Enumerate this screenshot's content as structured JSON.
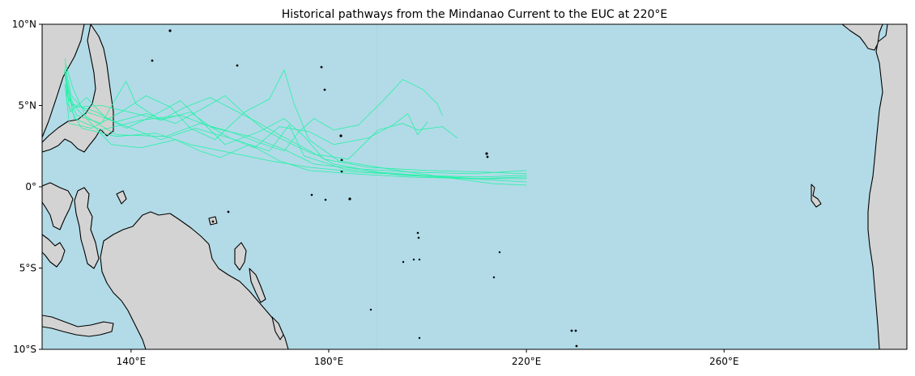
{
  "title": "Historical pathways from the Mindanao Current to the EUC at 220°E",
  "colors": {
    "ocean": "#b2dbe7",
    "land": "#d3d3d3",
    "coastline": "#000000",
    "trajectory": "#1ff2a4",
    "dateline": "#a9d3de"
  },
  "map": {
    "projection": "PlateCarree",
    "lon_range": [
      122,
      297
    ],
    "lat_range": [
      -10,
      10
    ],
    "lon_ticks": [
      {
        "value": 140,
        "label": "140°E"
      },
      {
        "value": 180,
        "label": "180°E"
      },
      {
        "value": 220,
        "label": "220°E"
      },
      {
        "value": 260,
        "label": "260°E"
      }
    ],
    "lat_ticks": [
      {
        "value": 10,
        "label": "10°N"
      },
      {
        "value": 5,
        "label": "5°N"
      },
      {
        "value": 0,
        "label": "0°"
      },
      {
        "value": -5,
        "label": "5°S"
      },
      {
        "value": -10,
        "label": "10°S"
      }
    ],
    "features": [
      "coastlines",
      "land",
      "ocean"
    ]
  },
  "trajectories": [
    {
      "name": "path-1",
      "points": [
        [
          126.7,
          7.9
        ],
        [
          127,
          5.2
        ],
        [
          130,
          3.6
        ],
        [
          137,
          3.1
        ],
        [
          145,
          3.3
        ],
        [
          152,
          2.6
        ],
        [
          160,
          2.1
        ],
        [
          168,
          1.6
        ],
        [
          176,
          1.2
        ],
        [
          186,
          0.9
        ],
        [
          198,
          0.7
        ],
        [
          210,
          0.6
        ],
        [
          220,
          0.7
        ]
      ]
    },
    {
      "name": "path-2",
      "points": [
        [
          126.9,
          6.5
        ],
        [
          128.5,
          4.2
        ],
        [
          134,
          3.5
        ],
        [
          142,
          4.1
        ],
        [
          150,
          4.4
        ],
        [
          157,
          3.6
        ],
        [
          164,
          3.1
        ],
        [
          171,
          2.3
        ],
        [
          177,
          1.4
        ],
        [
          186,
          1.1
        ],
        [
          197,
          0.9
        ],
        [
          209,
          0.8
        ],
        [
          220,
          1.0
        ]
      ]
    },
    {
      "name": "path-3",
      "points": [
        [
          126.5,
          7.2
        ],
        [
          127.6,
          4.6
        ],
        [
          131,
          5.5
        ],
        [
          135,
          4.2
        ],
        [
          140,
          3.6
        ],
        [
          146,
          2.9
        ],
        [
          153,
          3.6
        ],
        [
          160,
          3.0
        ],
        [
          168,
          2.2
        ],
        [
          172,
          3.8
        ],
        [
          175,
          1.9
        ],
        [
          183,
          1.1
        ],
        [
          195,
          0.7
        ],
        [
          208,
          0.5
        ],
        [
          220,
          0.3
        ]
      ]
    },
    {
      "name": "path-4",
      "points": [
        [
          126.8,
          6.9
        ],
        [
          128,
          5.1
        ],
        [
          133,
          4.6
        ],
        [
          139,
          3.6
        ],
        [
          144,
          4.3
        ],
        [
          150,
          5.3
        ],
        [
          155,
          3.8
        ],
        [
          159,
          2.6
        ],
        [
          166,
          3.4
        ],
        [
          171,
          4.2
        ],
        [
          175,
          3.1
        ],
        [
          179,
          1.7
        ],
        [
          188,
          1.2
        ],
        [
          200,
          1.0
        ],
        [
          212,
          0.9
        ],
        [
          220,
          0.8
        ]
      ]
    },
    {
      "name": "path-5",
      "points": [
        [
          126.6,
          6.3
        ],
        [
          127.5,
          3.9
        ],
        [
          132,
          3.6
        ],
        [
          138,
          4.6
        ],
        [
          143,
          5.6
        ],
        [
          148,
          4.9
        ],
        [
          152,
          3.6
        ],
        [
          157,
          2.9
        ],
        [
          163,
          4.6
        ],
        [
          168,
          5.4
        ],
        [
          171,
          7.2
        ],
        [
          173,
          5.1
        ],
        [
          176,
          2.9
        ],
        [
          182,
          1.6
        ],
        [
          192,
          1.1
        ],
        [
          203,
          0.6
        ],
        [
          213,
          0.2
        ],
        [
          220,
          0.1
        ]
      ]
    },
    {
      "name": "path-6",
      "points": [
        [
          126.7,
          7.6
        ],
        [
          128.2,
          6.1
        ],
        [
          131,
          4.2
        ],
        [
          136,
          2.6
        ],
        [
          142,
          2.4
        ],
        [
          149,
          2.9
        ],
        [
          154,
          2.2
        ],
        [
          158,
          1.8
        ],
        [
          164,
          2.6
        ],
        [
          170,
          1.6
        ],
        [
          176,
          1.0
        ],
        [
          185,
          0.8
        ],
        [
          196,
          0.6
        ],
        [
          208,
          0.5
        ],
        [
          220,
          0.5
        ]
      ]
    },
    {
      "name": "path-7",
      "points": [
        [
          126.9,
          5.8
        ],
        [
          129,
          4.4
        ],
        [
          134,
          3.9
        ],
        [
          139,
          6.5
        ],
        [
          141,
          5.1
        ],
        [
          146,
          4.1
        ],
        [
          152,
          4.6
        ],
        [
          156,
          3.7
        ],
        [
          160,
          3.0
        ],
        [
          165,
          2.4
        ],
        [
          170,
          3.7
        ],
        [
          176,
          3.4
        ],
        [
          181,
          2.6
        ],
        [
          188,
          3.0
        ],
        [
          193,
          3.8
        ],
        [
          196,
          4.5
        ],
        [
          198,
          3.2
        ],
        [
          200,
          4.0
        ]
      ]
    },
    {
      "name": "path-8",
      "points": [
        [
          126.6,
          7.0
        ],
        [
          127.4,
          5.3
        ],
        [
          130,
          4.5
        ],
        [
          137,
          3.2
        ],
        [
          147,
          3.1
        ],
        [
          154,
          3.9
        ],
        [
          160,
          3.4
        ],
        [
          166,
          2.7
        ],
        [
          171,
          2.2
        ],
        [
          174,
          3.4
        ],
        [
          177,
          4.2
        ],
        [
          181,
          3.5
        ],
        [
          186,
          3.8
        ],
        [
          191,
          5.3
        ],
        [
          195,
          6.6
        ],
        [
          199,
          6.0
        ],
        [
          202,
          5.1
        ],
        [
          203,
          4.4
        ]
      ]
    },
    {
      "name": "path-9",
      "points": [
        [
          126.8,
          6.2
        ],
        [
          128.6,
          4.9
        ],
        [
          134,
          5.0
        ],
        [
          141,
          4.5
        ],
        [
          146,
          4.1
        ],
        [
          151,
          4.9
        ],
        [
          156,
          5.5
        ],
        [
          161,
          4.7
        ],
        [
          166,
          3.9
        ],
        [
          170,
          3.2
        ],
        [
          175,
          2.4
        ],
        [
          181,
          1.4
        ],
        [
          190,
          0.9
        ],
        [
          199,
          0.7
        ],
        [
          210,
          0.5
        ],
        [
          220,
          0.6
        ]
      ]
    },
    {
      "name": "path-10",
      "points": [
        [
          126.7,
          7.4
        ],
        [
          127.9,
          5.6
        ],
        [
          131,
          4.6
        ],
        [
          137,
          4.0
        ],
        [
          143,
          4.5
        ],
        [
          149,
          3.9
        ],
        [
          155,
          4.9
        ],
        [
          159,
          5.6
        ],
        [
          163,
          4.5
        ],
        [
          167,
          3.5
        ],
        [
          172,
          2.7
        ],
        [
          177,
          2.0
        ],
        [
          184,
          1.7
        ],
        [
          190,
          3.5
        ],
        [
          195,
          3.9
        ],
        [
          198,
          3.5
        ],
        [
          203,
          3.7
        ],
        [
          206,
          3.0
        ]
      ]
    }
  ]
}
